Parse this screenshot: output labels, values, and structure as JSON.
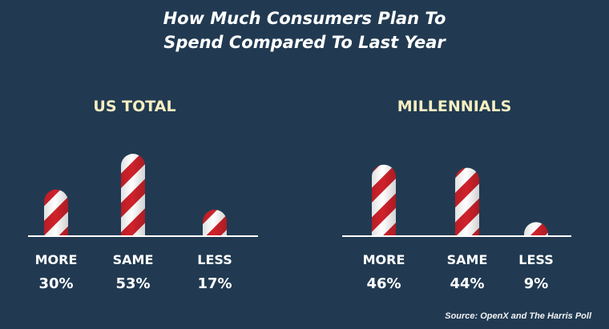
{
  "title_lines": [
    "How Much Consumers Plan To",
    "Spend Compared To Last Year"
  ],
  "source": "Source: OpenX and The Harris Poll",
  "colors": {
    "background": "#213a52",
    "group_title": "#f6efc0",
    "stripe_red": "#d0222b",
    "stripe_white": "#ffffff",
    "text": "#ffffff"
  },
  "chart_data": [
    {
      "type": "bar",
      "title": "US TOTAL",
      "categories": [
        "MORE",
        "SAME",
        "LESS"
      ],
      "values": [
        30,
        53,
        17
      ],
      "value_labels": [
        "30%",
        "53%",
        "17%"
      ],
      "ylim": [
        0,
        60
      ],
      "unit": "%"
    },
    {
      "type": "bar",
      "title": "MILLENNIALS",
      "categories": [
        "MORE",
        "SAME",
        "LESS"
      ],
      "values": [
        46,
        44,
        9
      ],
      "value_labels": [
        "46%",
        "44%",
        "9%"
      ],
      "ylim": [
        0,
        60
      ],
      "unit": "%"
    }
  ]
}
